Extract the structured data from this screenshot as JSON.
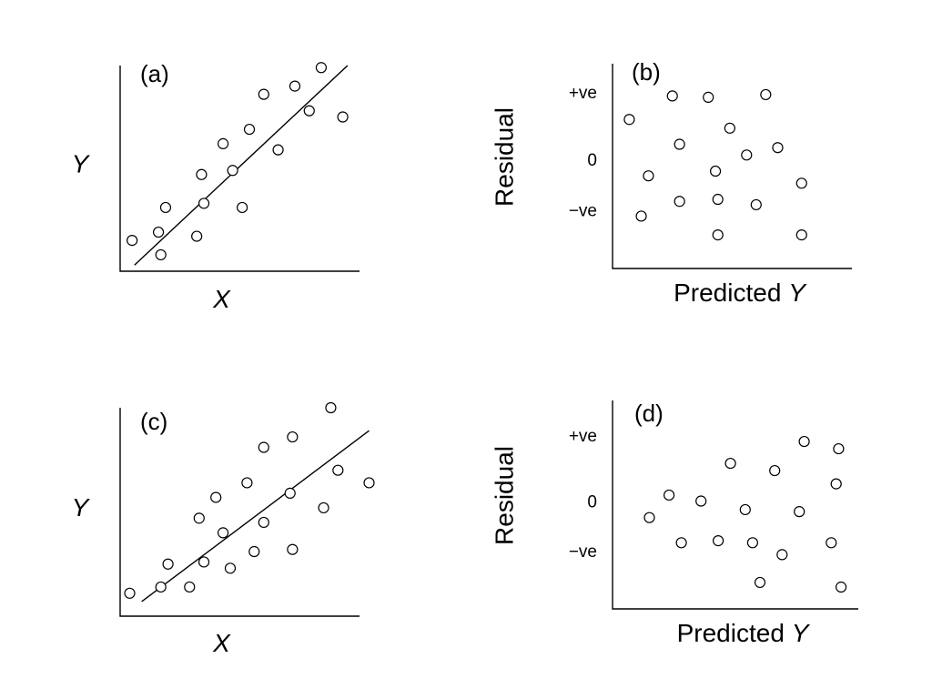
{
  "chart_data": [
    {
      "id": "a",
      "type": "scatter",
      "panel_label": "(a)",
      "xlabel": "X",
      "ylabel": "Y",
      "xlim": [
        0,
        10
      ],
      "ylim": [
        0,
        10
      ],
      "points": [
        {
          "x": 0.5,
          "y": 1.5
        },
        {
          "x": 1.6,
          "y": 1.9
        },
        {
          "x": 1.7,
          "y": 0.8
        },
        {
          "x": 1.9,
          "y": 3.1
        },
        {
          "x": 3.2,
          "y": 1.7
        },
        {
          "x": 3.4,
          "y": 4.7
        },
        {
          "x": 3.5,
          "y": 3.3
        },
        {
          "x": 4.3,
          "y": 6.2
        },
        {
          "x": 4.7,
          "y": 4.9
        },
        {
          "x": 5.1,
          "y": 3.1
        },
        {
          "x": 5.4,
          "y": 6.9
        },
        {
          "x": 6.0,
          "y": 8.6
        },
        {
          "x": 6.6,
          "y": 5.9
        },
        {
          "x": 7.3,
          "y": 9.0
        },
        {
          "x": 7.9,
          "y": 7.8
        },
        {
          "x": 8.4,
          "y": 9.9
        },
        {
          "x": 9.3,
          "y": 7.5
        }
      ],
      "fit_line": {
        "x": [
          0.6,
          9.5
        ],
        "y": [
          0.3,
          10.0
        ]
      }
    },
    {
      "id": "b",
      "type": "scatter",
      "panel_label": "(b)",
      "xlabel": "Predicted Y",
      "ylabel": "Residual",
      "yticks": [
        {
          "value": 1,
          "label": "+ve"
        },
        {
          "value": 0,
          "label": "0"
        },
        {
          "value": -0.75,
          "label": "−ve"
        }
      ],
      "xlim": [
        0,
        10
      ],
      "ylim": [
        -1.6,
        1.45
      ],
      "points": [
        {
          "x": 0.7,
          "y": 0.62
        },
        {
          "x": 1.2,
          "y": -0.82
        },
        {
          "x": 1.5,
          "y": -0.22
        },
        {
          "x": 2.5,
          "y": 0.97
        },
        {
          "x": 2.8,
          "y": 0.25
        },
        {
          "x": 2.8,
          "y": -0.6
        },
        {
          "x": 4.0,
          "y": 0.95
        },
        {
          "x": 4.3,
          "y": -0.15
        },
        {
          "x": 4.4,
          "y": -0.57
        },
        {
          "x": 4.4,
          "y": -1.1
        },
        {
          "x": 4.9,
          "y": 0.49
        },
        {
          "x": 5.6,
          "y": 0.09
        },
        {
          "x": 6.0,
          "y": -0.65
        },
        {
          "x": 6.4,
          "y": 0.99
        },
        {
          "x": 6.9,
          "y": 0.2
        },
        {
          "x": 7.9,
          "y": -0.33
        },
        {
          "x": 7.9,
          "y": -1.1
        }
      ]
    },
    {
      "id": "c",
      "type": "scatter",
      "panel_label": "(c)",
      "xlabel": "X",
      "ylabel": "Y",
      "xlim": [
        0,
        10
      ],
      "ylim": [
        0,
        10
      ],
      "points": [
        {
          "x": 0.4,
          "y": 1.1
        },
        {
          "x": 1.7,
          "y": 1.4
        },
        {
          "x": 2.0,
          "y": 2.5
        },
        {
          "x": 2.9,
          "y": 1.4
        },
        {
          "x": 3.3,
          "y": 4.7
        },
        {
          "x": 3.5,
          "y": 2.6
        },
        {
          "x": 4.0,
          "y": 5.7
        },
        {
          "x": 4.3,
          "y": 4.0
        },
        {
          "x": 4.6,
          "y": 2.3
        },
        {
          "x": 5.3,
          "y": 6.4
        },
        {
          "x": 5.6,
          "y": 3.1
        },
        {
          "x": 6.0,
          "y": 8.1
        },
        {
          "x": 6.0,
          "y": 4.5
        },
        {
          "x": 7.1,
          "y": 5.9
        },
        {
          "x": 7.2,
          "y": 8.6
        },
        {
          "x": 7.2,
          "y": 3.2
        },
        {
          "x": 8.5,
          "y": 5.2
        },
        {
          "x": 8.8,
          "y": 10.0
        },
        {
          "x": 9.1,
          "y": 7.0
        },
        {
          "x": 10.4,
          "y": 6.4
        }
      ],
      "fit_line": {
        "x": [
          0.9,
          10.4
        ],
        "y": [
          0.7,
          8.9
        ]
      }
    },
    {
      "id": "d",
      "type": "scatter",
      "panel_label": "(d)",
      "xlabel": "Predicted Y",
      "ylabel": "Residual",
      "yticks": [
        {
          "value": 1,
          "label": "+ve"
        },
        {
          "value": 0,
          "label": "0"
        },
        {
          "value": -0.75,
          "label": "−ve"
        }
      ],
      "xlim": [
        0,
        10
      ],
      "ylim": [
        -1.6,
        1.55
      ],
      "points": [
        {
          "x": 1.5,
          "y": -0.22
        },
        {
          "x": 2.3,
          "y": 0.12
        },
        {
          "x": 2.8,
          "y": -0.6
        },
        {
          "x": 3.6,
          "y": 0.03
        },
        {
          "x": 4.3,
          "y": -0.57
        },
        {
          "x": 4.8,
          "y": 0.6
        },
        {
          "x": 5.4,
          "y": -0.1
        },
        {
          "x": 5.7,
          "y": -0.6
        },
        {
          "x": 6.0,
          "y": -1.2
        },
        {
          "x": 6.6,
          "y": 0.49
        },
        {
          "x": 6.9,
          "y": -0.78
        },
        {
          "x": 7.6,
          "y": -0.13
        },
        {
          "x": 7.8,
          "y": 0.93
        },
        {
          "x": 8.9,
          "y": -0.6
        },
        {
          "x": 9.1,
          "y": 0.29
        },
        {
          "x": 9.2,
          "y": 0.82
        },
        {
          "x": 9.3,
          "y": -1.27
        }
      ]
    }
  ]
}
